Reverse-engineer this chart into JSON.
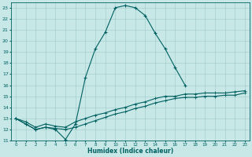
{
  "xlabel": "Humidex (Indice chaleur)",
  "background_color": "#c8e8e8",
  "grid_color": "#a0c8c8",
  "line_color": "#006060",
  "xlim": [
    -0.5,
    23.5
  ],
  "ylim": [
    11,
    23.5
  ],
  "x_ticks": [
    0,
    1,
    2,
    3,
    4,
    5,
    6,
    7,
    8,
    9,
    10,
    11,
    12,
    13,
    14,
    15,
    16,
    17,
    18,
    19,
    20,
    21,
    22,
    23
  ],
  "y_ticks": [
    11,
    12,
    13,
    14,
    15,
    16,
    17,
    18,
    19,
    20,
    21,
    22,
    23
  ],
  "curve1_x": [
    0,
    1,
    2,
    3,
    4,
    5,
    6,
    7,
    8,
    9,
    10,
    11,
    12,
    13,
    14,
    15,
    16,
    17
  ],
  "curve1_y": [
    13,
    12.5,
    12,
    12.2,
    12,
    11.1,
    12.5,
    16.7,
    19.3,
    20.8,
    23.0,
    23.2,
    23.0,
    22.3,
    20.7,
    19.3,
    17.6,
    16.0
  ],
  "curve2_x": [
    0,
    1,
    2,
    3,
    4,
    5,
    6,
    7,
    8,
    9,
    10,
    11,
    12,
    13,
    14,
    15,
    16,
    17,
    18,
    19,
    20,
    21,
    22,
    23
  ],
  "curve2_y": [
    13.0,
    12.7,
    12.2,
    12.5,
    12.3,
    12.2,
    12.7,
    13.0,
    13.3,
    13.5,
    13.8,
    14.0,
    14.3,
    14.5,
    14.8,
    15.0,
    15.0,
    15.2,
    15.2,
    15.3,
    15.3,
    15.3,
    15.4,
    15.5
  ],
  "curve3_x": [
    0,
    1,
    2,
    3,
    4,
    5,
    6,
    7,
    8,
    9,
    10,
    11,
    12,
    13,
    14,
    15,
    16,
    17,
    18,
    19,
    20,
    21,
    22,
    23
  ],
  "curve3_y": [
    13.0,
    12.5,
    12.0,
    12.2,
    12.1,
    12.0,
    12.2,
    12.5,
    12.8,
    13.1,
    13.4,
    13.6,
    13.9,
    14.1,
    14.4,
    14.6,
    14.8,
    14.9,
    14.9,
    15.0,
    15.0,
    15.1,
    15.1,
    15.3
  ]
}
